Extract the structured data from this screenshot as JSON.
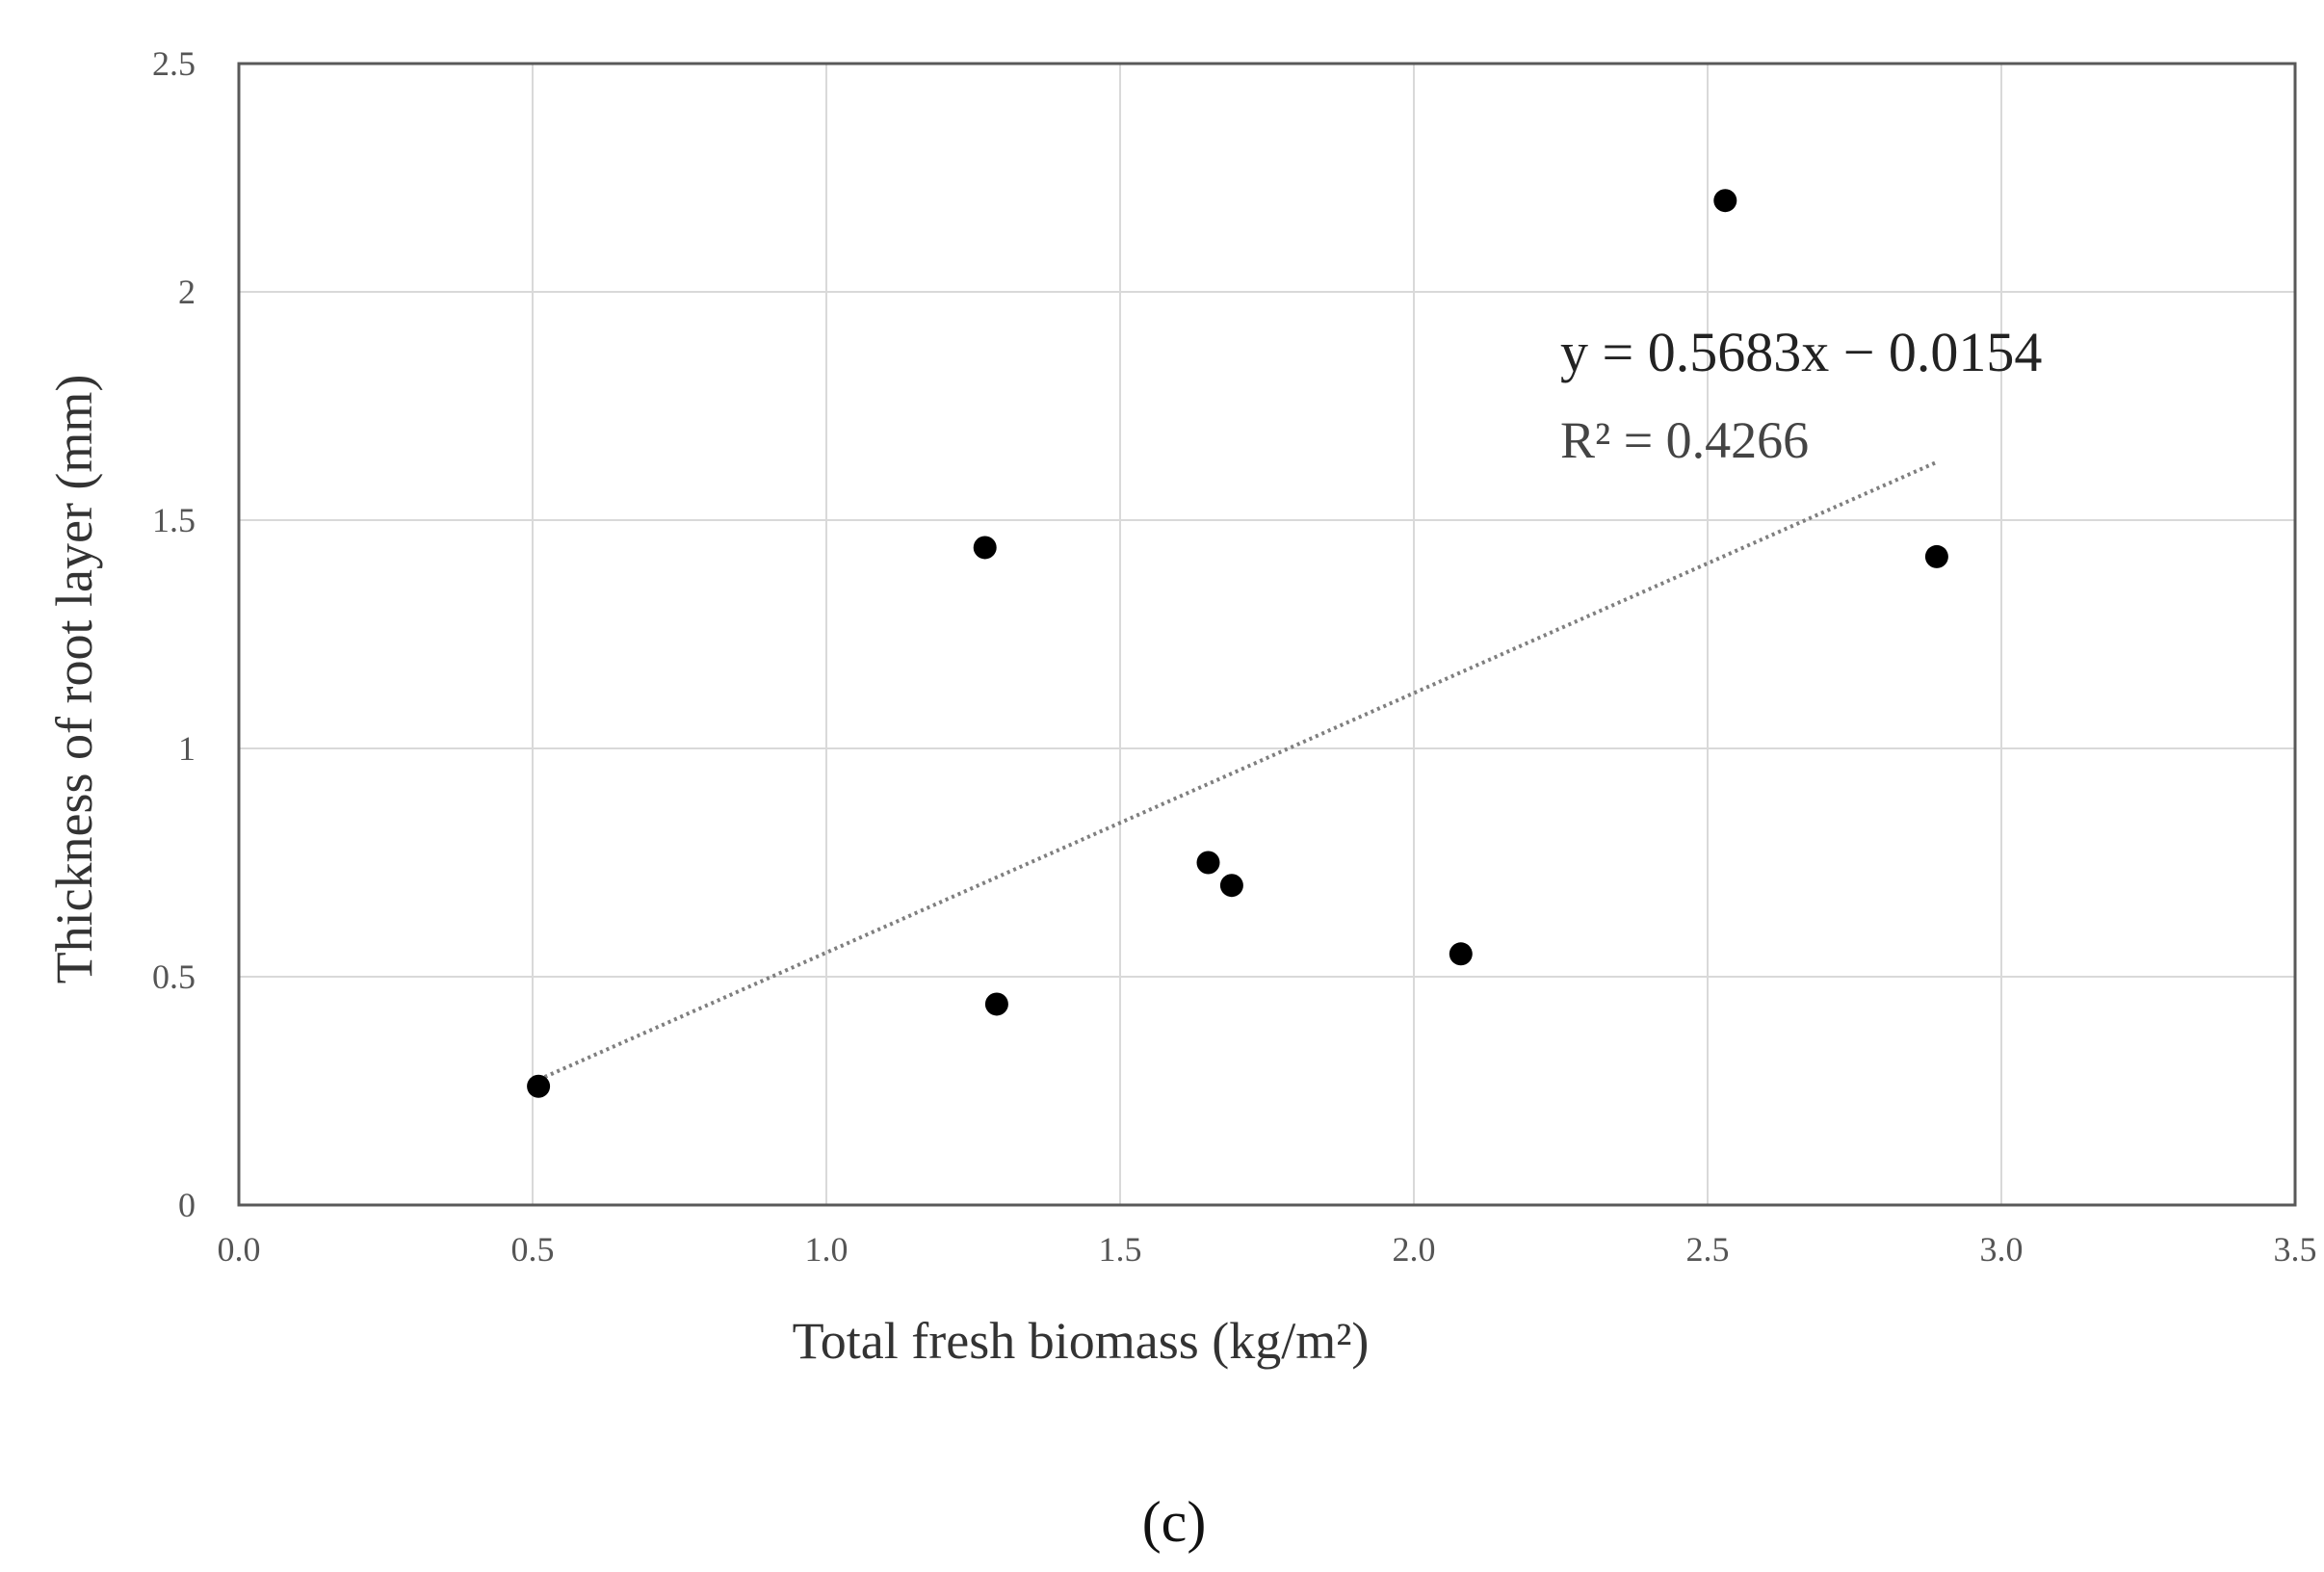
{
  "chart_data": {
    "type": "scatter",
    "xlabel": "Total fresh biomass (kg/m²)",
    "ylabel": "Thickness of root layer (mm)",
    "xlim": [
      0.0,
      3.5
    ],
    "ylim": [
      0,
      2.5
    ],
    "x_ticks": [
      "0.0",
      "0.5",
      "1.0",
      "1.5",
      "2.0",
      "2.5",
      "3.0",
      "3.5"
    ],
    "y_ticks": [
      "0",
      "0.5",
      "1",
      "1.5",
      "2",
      "2.5"
    ],
    "grid": true,
    "legend": "none",
    "points": [
      {
        "x": 0.51,
        "y": 0.26
      },
      {
        "x": 1.27,
        "y": 1.44
      },
      {
        "x": 1.29,
        "y": 0.44
      },
      {
        "x": 1.65,
        "y": 0.75
      },
      {
        "x": 1.69,
        "y": 0.7
      },
      {
        "x": 2.08,
        "y": 0.55
      },
      {
        "x": 2.53,
        "y": 2.2
      },
      {
        "x": 2.89,
        "y": 1.42
      }
    ],
    "trendline": {
      "type": "linear",
      "slope": 0.5683,
      "intercept": -0.0154,
      "x_range": [
        0.51,
        2.89
      ],
      "style": "dotted"
    },
    "equation_text": "y = 0.5683x − 0.0154",
    "r2_text": "R² = 0.4266",
    "colors": {
      "points": "#000000",
      "trendline": "#7f7f7f",
      "grid": "#d9d9d9",
      "frame": "#595959"
    }
  },
  "panel_label": "(c)"
}
